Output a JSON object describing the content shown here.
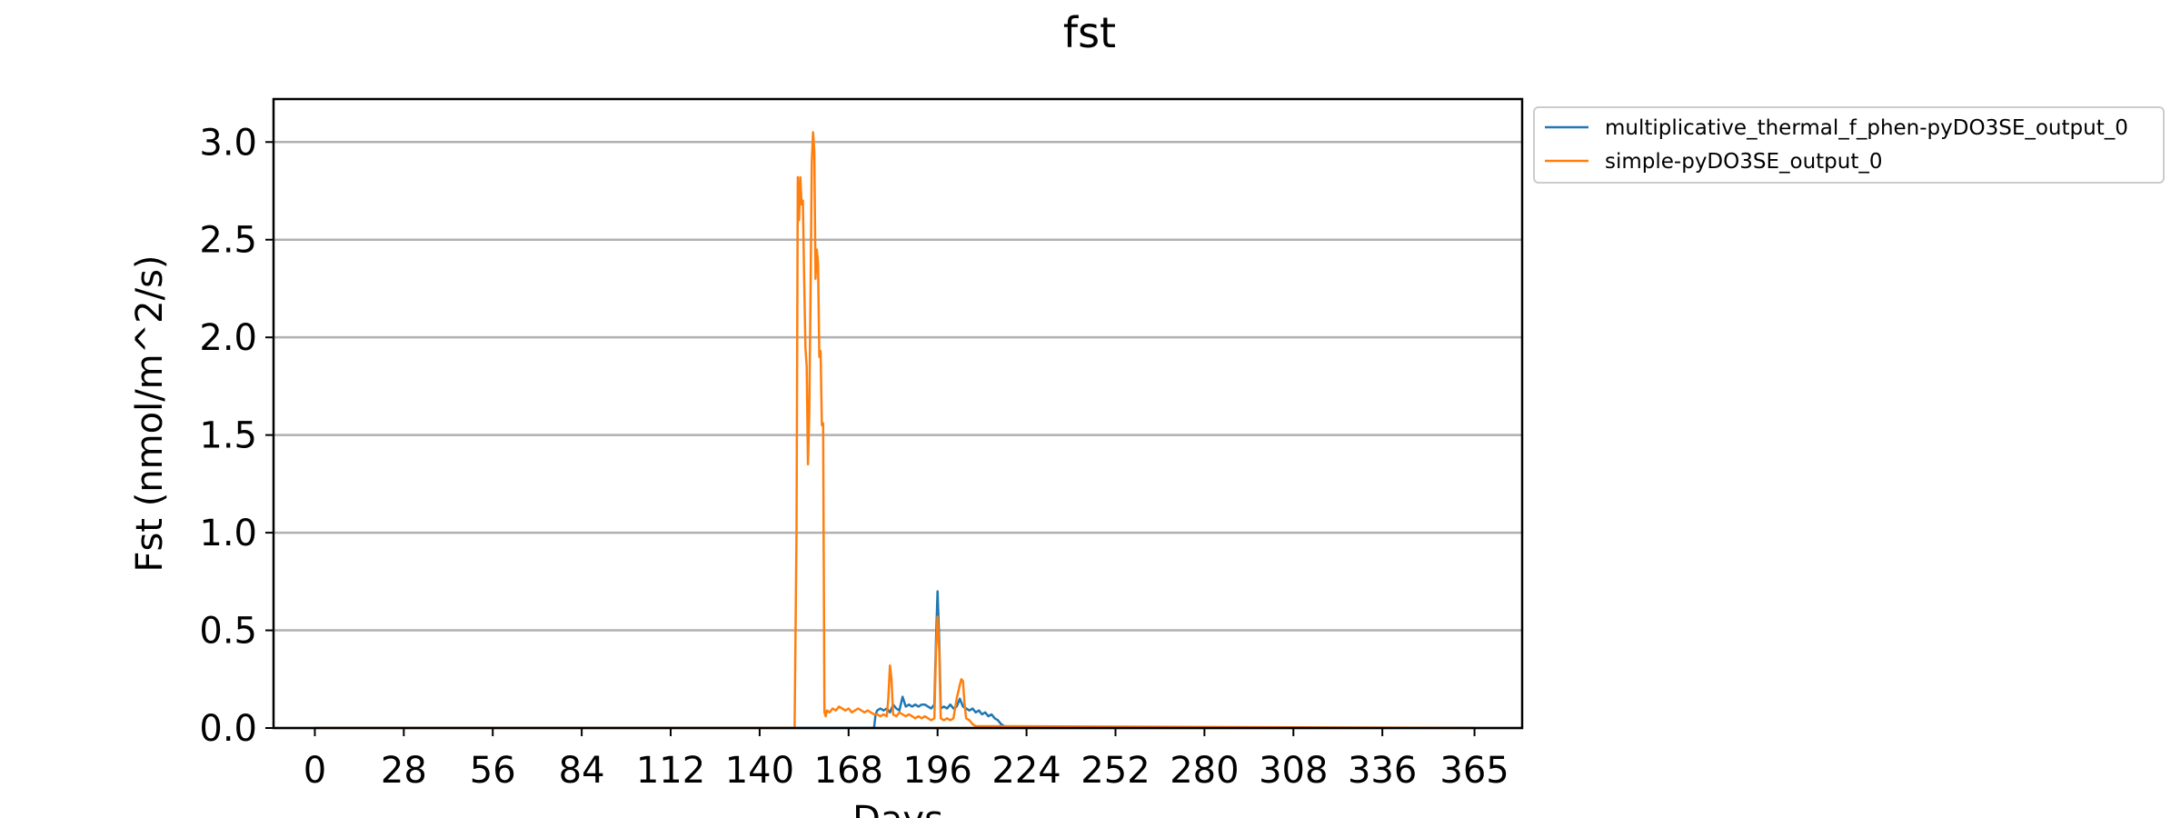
{
  "chart_data": {
    "type": "line",
    "title": "fst",
    "xlabel": "Days",
    "ylabel": "Fst (nmol/m^2/s)",
    "xlim": [
      -13,
      380
    ],
    "ylim": [
      0,
      3.22
    ],
    "xticks": [
      0,
      28,
      56,
      84,
      112,
      140,
      168,
      196,
      224,
      252,
      280,
      308,
      336,
      365
    ],
    "yticks": [
      0.0,
      0.5,
      1.0,
      1.5,
      2.0,
      2.5,
      3.0
    ],
    "ytick_labels": [
      "0.0",
      "0.5",
      "1.0",
      "1.5",
      "2.0",
      "2.5",
      "3.0"
    ],
    "grid": "horizontal",
    "legend_position": "outside-top-right",
    "series": [
      {
        "name": "multiplicative_thermal_f_phen-pyDO3SE_output_0",
        "color": "#1f77b4",
        "x": [
          0,
          176,
          176.5,
          177,
          178,
          179,
          180,
          181,
          182,
          183,
          184,
          185,
          186,
          187,
          188,
          189,
          190,
          191,
          192,
          193,
          194,
          195,
          195.5,
          196,
          196.5,
          197,
          198,
          199,
          200,
          201,
          202,
          203,
          204,
          205,
          206,
          207,
          208,
          209,
          210,
          211,
          212,
          213,
          214,
          215,
          216,
          217,
          218,
          365
        ],
        "y": [
          0,
          0,
          0.07,
          0.09,
          0.1,
          0.09,
          0.1,
          0.08,
          0.12,
          0.1,
          0.09,
          0.16,
          0.11,
          0.12,
          0.11,
          0.12,
          0.11,
          0.12,
          0.12,
          0.11,
          0.1,
          0.12,
          0.45,
          0.7,
          0.45,
          0.1,
          0.11,
          0.1,
          0.12,
          0.1,
          0.11,
          0.15,
          0.11,
          0.1,
          0.09,
          0.1,
          0.08,
          0.09,
          0.07,
          0.08,
          0.06,
          0.07,
          0.05,
          0.04,
          0.02,
          0.01,
          0,
          0
        ]
      },
      {
        "name": "simple-pyDO3SE_output_0",
        "color": "#ff7f0e",
        "x": [
          0,
          151,
          151.6,
          152,
          152.4,
          152.8,
          153.2,
          153.6,
          154,
          154.4,
          154.8,
          155.2,
          155.6,
          156,
          156.4,
          156.8,
          157.2,
          157.6,
          158,
          158.4,
          158.8,
          159.2,
          159.6,
          160,
          160.4,
          160.8,
          161.2,
          162,
          163,
          164,
          165,
          166,
          167,
          168,
          169,
          170,
          171,
          172,
          173,
          174,
          175,
          176,
          177,
          178,
          179,
          180,
          180.5,
          181,
          181.5,
          182,
          183,
          184,
          185,
          186,
          187,
          188,
          189,
          190,
          191,
          192,
          193,
          194,
          195,
          195.5,
          196,
          196.5,
          197,
          198,
          199,
          200,
          201,
          202,
          203,
          203.5,
          204,
          204.5,
          205,
          206,
          207,
          208,
          365
        ],
        "y": [
          0,
          0,
          1.0,
          2.82,
          2.6,
          2.82,
          2.68,
          2.7,
          2.3,
          1.95,
          1.85,
          1.35,
          1.6,
          2.2,
          2.9,
          3.05,
          2.95,
          2.3,
          2.45,
          2.38,
          1.9,
          1.93,
          1.55,
          1.56,
          0.08,
          0.06,
          0.09,
          0.08,
          0.1,
          0.09,
          0.11,
          0.1,
          0.09,
          0.1,
          0.08,
          0.09,
          0.1,
          0.09,
          0.08,
          0.09,
          0.08,
          0.07,
          0.07,
          0.06,
          0.07,
          0.06,
          0.15,
          0.32,
          0.25,
          0.07,
          0.06,
          0.08,
          0.07,
          0.06,
          0.07,
          0.06,
          0.05,
          0.06,
          0.05,
          0.06,
          0.05,
          0.04,
          0.05,
          0.4,
          0.57,
          0.4,
          0.05,
          0.04,
          0.05,
          0.04,
          0.05,
          0.15,
          0.22,
          0.25,
          0.24,
          0.12,
          0.05,
          0.04,
          0.02,
          0.01,
          0
        ]
      }
    ]
  }
}
